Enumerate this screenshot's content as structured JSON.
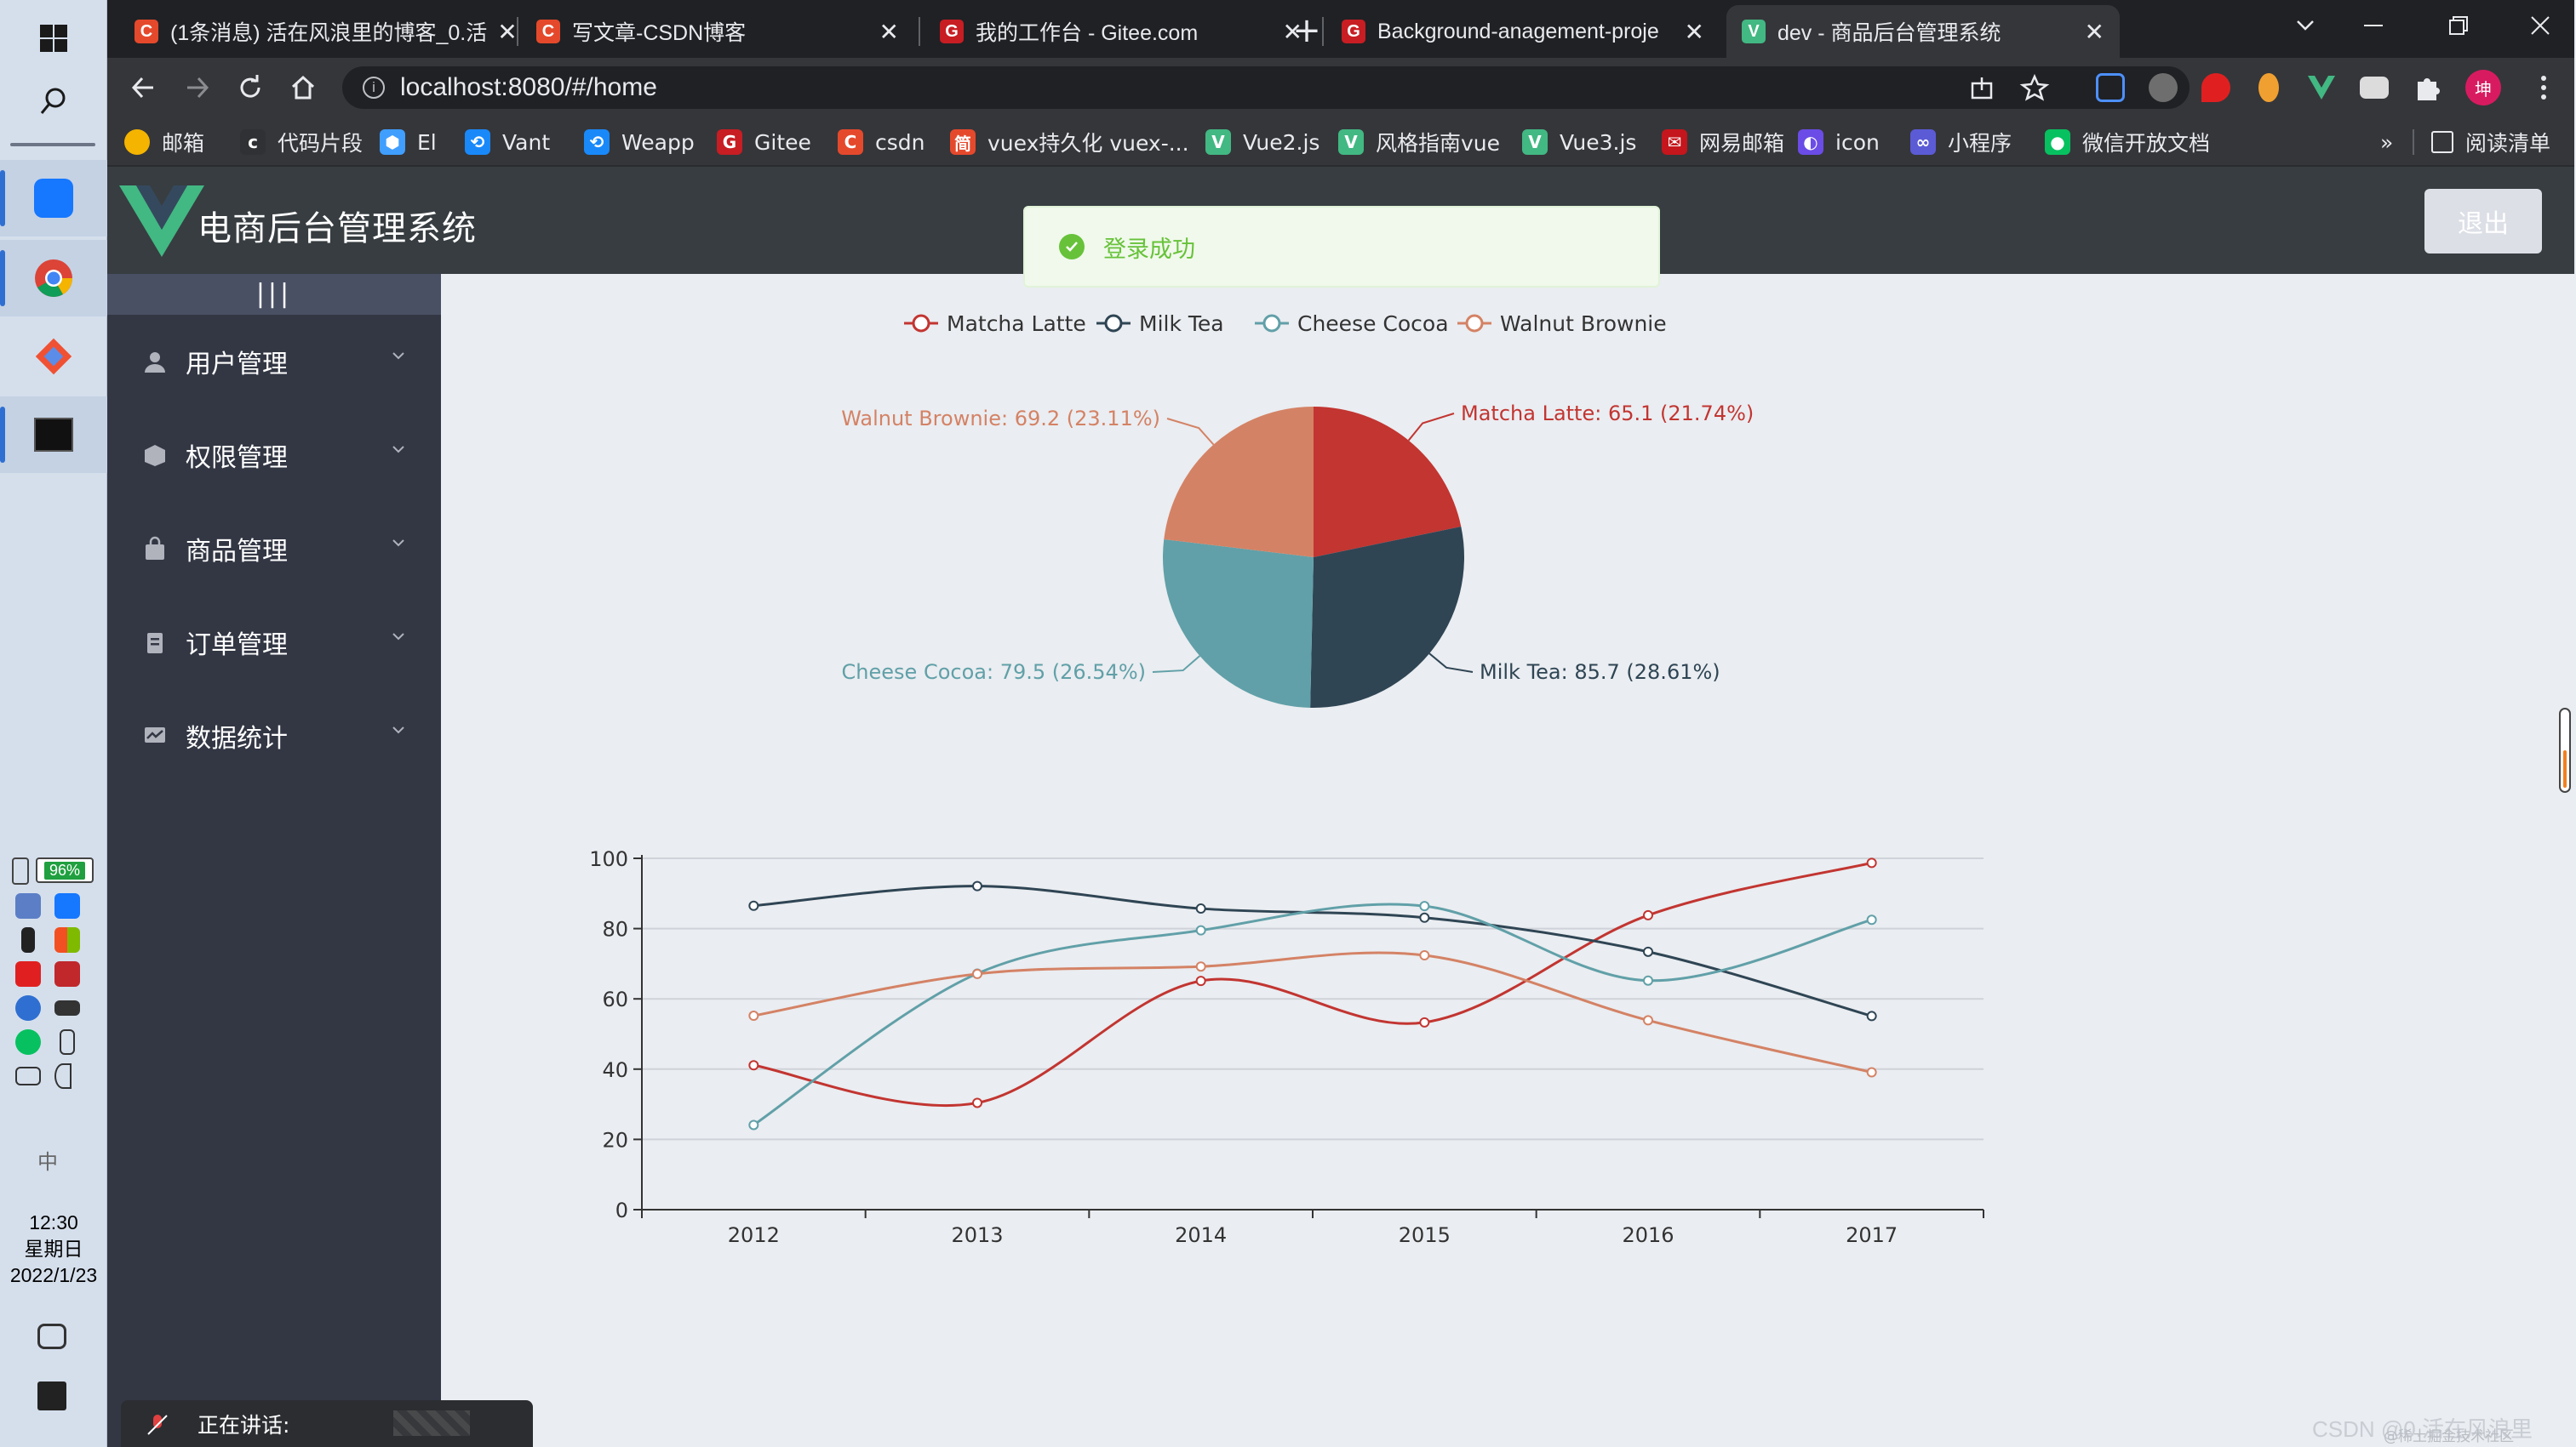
{
  "browser": {
    "tabs": [
      {
        "title": "(1条消息) 活在风浪里的博客_0.活",
        "icon": "csdn-icon",
        "color": "#e5492c",
        "glyph": "C"
      },
      {
        "title": "写文章-CSDN博客",
        "icon": "csdn-icon",
        "color": "#e5492c",
        "glyph": "C"
      },
      {
        "title": "我的工作台 - Gitee.com",
        "icon": "gitee-icon",
        "color": "#c71d23",
        "glyph": "G"
      },
      {
        "title": "Background-anagement-proje",
        "icon": "gitee-icon",
        "color": "#c71d23",
        "glyph": "G"
      },
      {
        "title": "dev - 商品后台管理系统",
        "icon": "vue-icon",
        "color": "#42b883",
        "glyph": "V"
      }
    ],
    "address": "localhost:8080/#/home",
    "bookmarks": [
      {
        "label": "邮箱",
        "icon": "chrome-icon",
        "color": "#f4b400",
        "glyph": ""
      },
      {
        "label": "代码片段",
        "icon": "code-icon",
        "color": "#303134",
        "glyph": "c"
      },
      {
        "label": "El",
        "icon": "element-icon",
        "color": "#409eff",
        "glyph": "⬢"
      },
      {
        "label": "Vant",
        "icon": "vant-icon",
        "color": "#1989fa",
        "glyph": "⟲"
      },
      {
        "label": "Weapp",
        "icon": "weapp-icon",
        "color": "#1989fa",
        "glyph": "⟲"
      },
      {
        "label": "Gitee",
        "icon": "gitee-icon",
        "color": "#c71d23",
        "glyph": "G"
      },
      {
        "label": "csdn",
        "icon": "csdn-icon",
        "color": "#e5492c",
        "glyph": "C"
      },
      {
        "label": "vuex持久化 vuex-...",
        "icon": "jianshu-icon",
        "color": "#e5492c",
        "glyph": "简"
      },
      {
        "label": "Vue2.js",
        "icon": "vue-icon",
        "color": "#42b883",
        "glyph": "V"
      },
      {
        "label": "风格指南vue",
        "icon": "vue-icon",
        "color": "#42b883",
        "glyph": "V"
      },
      {
        "label": "Vue3.js",
        "icon": "vue-icon",
        "color": "#42b883",
        "glyph": "V"
      },
      {
        "label": "网易邮箱",
        "icon": "netease-icon",
        "color": "#c4161c",
        "glyph": "✉"
      },
      {
        "label": "icon",
        "icon": "iconfont-icon",
        "color": "#6b4ce6",
        "glyph": "◐"
      },
      {
        "label": "小程序",
        "icon": "link-icon",
        "color": "#5b5bd6",
        "glyph": "∞"
      },
      {
        "label": "微信开放文档",
        "icon": "wechat-icon",
        "color": "#07c160",
        "glyph": "●"
      }
    ],
    "bookmarks_more": "»",
    "reading_list": "阅读清单",
    "avatar_text": "坤"
  },
  "app": {
    "title": "电商后台管理系统",
    "logout": "退出",
    "collapse": "|||",
    "menu": [
      {
        "label": "用户管理",
        "icon": "user-icon"
      },
      {
        "label": "权限管理",
        "icon": "permission-icon"
      },
      {
        "label": "商品管理",
        "icon": "goods-icon"
      },
      {
        "label": "订单管理",
        "icon": "order-icon"
      },
      {
        "label": "数据统计",
        "icon": "chart-icon"
      }
    ],
    "toast": "登录成功"
  },
  "taskbar": {
    "battery": "96%",
    "time": "12:30",
    "weekday": "星期日",
    "date": "2022/1/23",
    "ime": "中"
  },
  "overlay": {
    "speaking": "正在讲话:",
    "watermark": "CSDN @0.活在风浪里",
    "watermark2": "@稀土掘金技术社区"
  },
  "colors": {
    "series": [
      "#c23531",
      "#2f4554",
      "#61a0a8",
      "#d48265"
    ]
  },
  "chart_data": [
    {
      "type": "pie",
      "legend": [
        "Matcha Latte",
        "Milk Tea",
        "Cheese Cocoa",
        "Walnut Brownie"
      ],
      "slices": [
        {
          "name": "Matcha Latte",
          "value": 65.1,
          "label": "Matcha Latte: 65.1 (21.74%)"
        },
        {
          "name": "Milk Tea",
          "value": 85.7,
          "label": "Milk Tea: 85.7 (28.61%)"
        },
        {
          "name": "Cheese Cocoa",
          "value": 79.5,
          "label": "Cheese Cocoa: 79.5 (26.54%)"
        },
        {
          "name": "Walnut Brownie",
          "value": 69.2,
          "label": "Walnut Brownie: 69.2 (23.11%)"
        }
      ],
      "legend_position": "top-center"
    },
    {
      "type": "line",
      "smooth": true,
      "categories": [
        "2012",
        "2013",
        "2014",
        "2015",
        "2016",
        "2017"
      ],
      "series": [
        {
          "name": "Matcha Latte",
          "values": [
            41.1,
            30.4,
            65.1,
            53.3,
            83.8,
            98.7
          ]
        },
        {
          "name": "Milk Tea",
          "values": [
            86.5,
            92.1,
            85.7,
            83.1,
            73.4,
            55.1
          ]
        },
        {
          "name": "Cheese Cocoa",
          "values": [
            24.1,
            67.2,
            79.5,
            86.4,
            65.2,
            82.5
          ]
        },
        {
          "name": "Walnut Brownie",
          "values": [
            55.2,
            67.1,
            69.2,
            72.4,
            53.9,
            39.1
          ]
        }
      ],
      "ylim": [
        0,
        100
      ],
      "yticks": [
        0,
        20,
        40,
        60,
        80,
        100
      ],
      "grid": true
    }
  ]
}
